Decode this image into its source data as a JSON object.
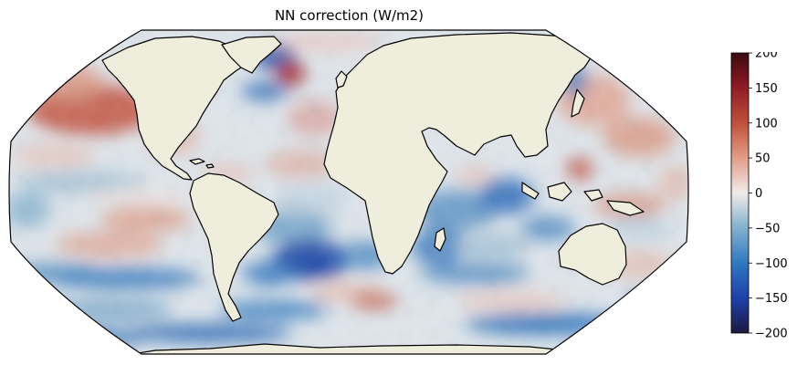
{
  "title": "NN correction (W/m2)",
  "projection": "Robinson",
  "land_color": "#efeedc",
  "colorbar": {
    "colormap": "balance",
    "colors": [
      "#1c1a3e",
      "#1d3fa8",
      "#2f78c0",
      "#86b3cf",
      "#f1ebea",
      "#e3a08c",
      "#c0503a",
      "#8e1a24",
      "#3b0a0e"
    ],
    "min": -200,
    "max": 200,
    "ticks": [
      "200",
      "150",
      "100",
      "50",
      "0",
      "−50",
      "−100",
      "−150",
      "−200"
    ]
  }
}
